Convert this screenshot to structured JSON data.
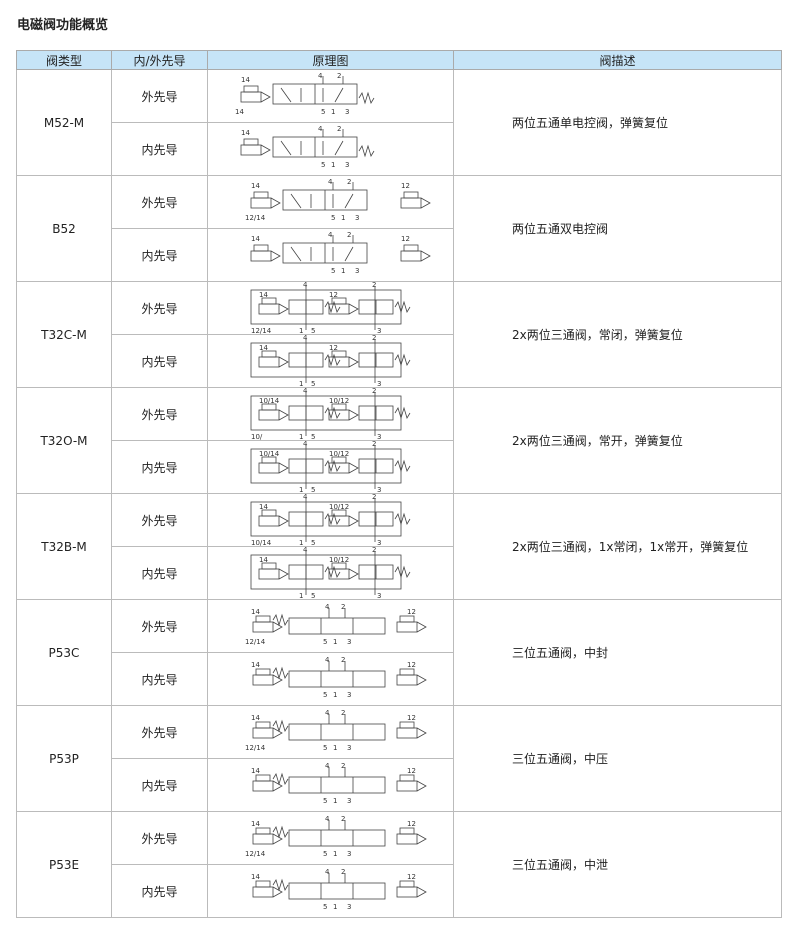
{
  "title": "电磁阀功能概览",
  "headers": [
    "阀类型",
    "内/外先导",
    "原理图",
    "阀描述"
  ],
  "rows": [
    {
      "type": "M52-M",
      "desc": "两位五通单电控阀，弹簧复位",
      "variants": [
        {
          "pilot": "外先导",
          "diagram": "52single",
          "labels": [
            "14",
            "14",
            "4",
            "2",
            "5",
            "1",
            "3"
          ]
        },
        {
          "pilot": "内先导",
          "diagram": "52single",
          "labels": [
            "14",
            "",
            "4",
            "2",
            "5",
            "1",
            "3"
          ]
        }
      ]
    },
    {
      "type": "B52",
      "desc": "两位五通双电控阀",
      "variants": [
        {
          "pilot": "外先导",
          "diagram": "52double",
          "labels": [
            "14",
            "12/14",
            "4",
            "2",
            "5",
            "1",
            "3",
            "12"
          ]
        },
        {
          "pilot": "内先导",
          "diagram": "52double",
          "labels": [
            "14",
            "",
            "4",
            "2",
            "5",
            "1",
            "3",
            "12"
          ]
        }
      ]
    },
    {
      "type": "T32C-M",
      "desc": "2x两位三通阀，常闭，弹簧复位",
      "variants": [
        {
          "pilot": "外先导",
          "diagram": "32dual",
          "labels": [
            "14",
            "12/14",
            "4",
            "2",
            "1",
            "5",
            "3",
            "12"
          ]
        },
        {
          "pilot": "内先导",
          "diagram": "32dual",
          "labels": [
            "14",
            "",
            "4",
            "2",
            "1",
            "5",
            "3",
            "12"
          ]
        }
      ]
    },
    {
      "type": "T32O-M",
      "desc": "2x两位三通阀，常开，弹簧复位",
      "variants": [
        {
          "pilot": "外先导",
          "diagram": "32dual",
          "labels": [
            "10/14",
            "10/",
            "4",
            "2",
            "1",
            "5",
            "3",
            "10/12"
          ]
        },
        {
          "pilot": "内先导",
          "diagram": "32dual",
          "labels": [
            "10/14",
            "",
            "4",
            "2",
            "1",
            "5",
            "3",
            "10/12"
          ]
        }
      ]
    },
    {
      "type": "T32B-M",
      "desc": "2x两位三通阀，1x常闭，1x常开，弹簧复位",
      "variants": [
        {
          "pilot": "外先导",
          "diagram": "32dual",
          "labels": [
            "14",
            "10/14",
            "4",
            "2",
            "1",
            "5",
            "3",
            "10/12"
          ]
        },
        {
          "pilot": "内先导",
          "diagram": "32dual",
          "labels": [
            "14",
            "",
            "4",
            "2",
            "1",
            "5",
            "3",
            "10/12"
          ]
        }
      ]
    },
    {
      "type": "P53C",
      "desc": "三位五通阀，中封",
      "variants": [
        {
          "pilot": "外先导",
          "diagram": "53",
          "labels": [
            "14",
            "12/14",
            "4",
            "2",
            "5",
            "1",
            "3",
            "12"
          ]
        },
        {
          "pilot": "内先导",
          "diagram": "53",
          "labels": [
            "14",
            "",
            "4",
            "2",
            "5",
            "1",
            "3",
            "12"
          ]
        }
      ]
    },
    {
      "type": "P53P",
      "desc": "三位五通阀，中压",
      "variants": [
        {
          "pilot": "外先导",
          "diagram": "53",
          "labels": [
            "14",
            "12/14",
            "4",
            "2",
            "5",
            "1",
            "3",
            "12"
          ]
        },
        {
          "pilot": "内先导",
          "diagram": "53",
          "labels": [
            "14",
            "",
            "4",
            "2",
            "5",
            "1",
            "3",
            "12"
          ]
        }
      ]
    },
    {
      "type": "P53E",
      "desc": "三位五通阀，中泄",
      "variants": [
        {
          "pilot": "外先导",
          "diagram": "53",
          "labels": [
            "14",
            "12/14",
            "4",
            "2",
            "5",
            "1",
            "3",
            "12"
          ]
        },
        {
          "pilot": "内先导",
          "diagram": "53",
          "labels": [
            "14",
            "",
            "4",
            "2",
            "5",
            "1",
            "3",
            "12"
          ]
        }
      ]
    }
  ],
  "colors": {
    "header_bg": "#c6e4f7",
    "border": "#bbbbbb"
  }
}
